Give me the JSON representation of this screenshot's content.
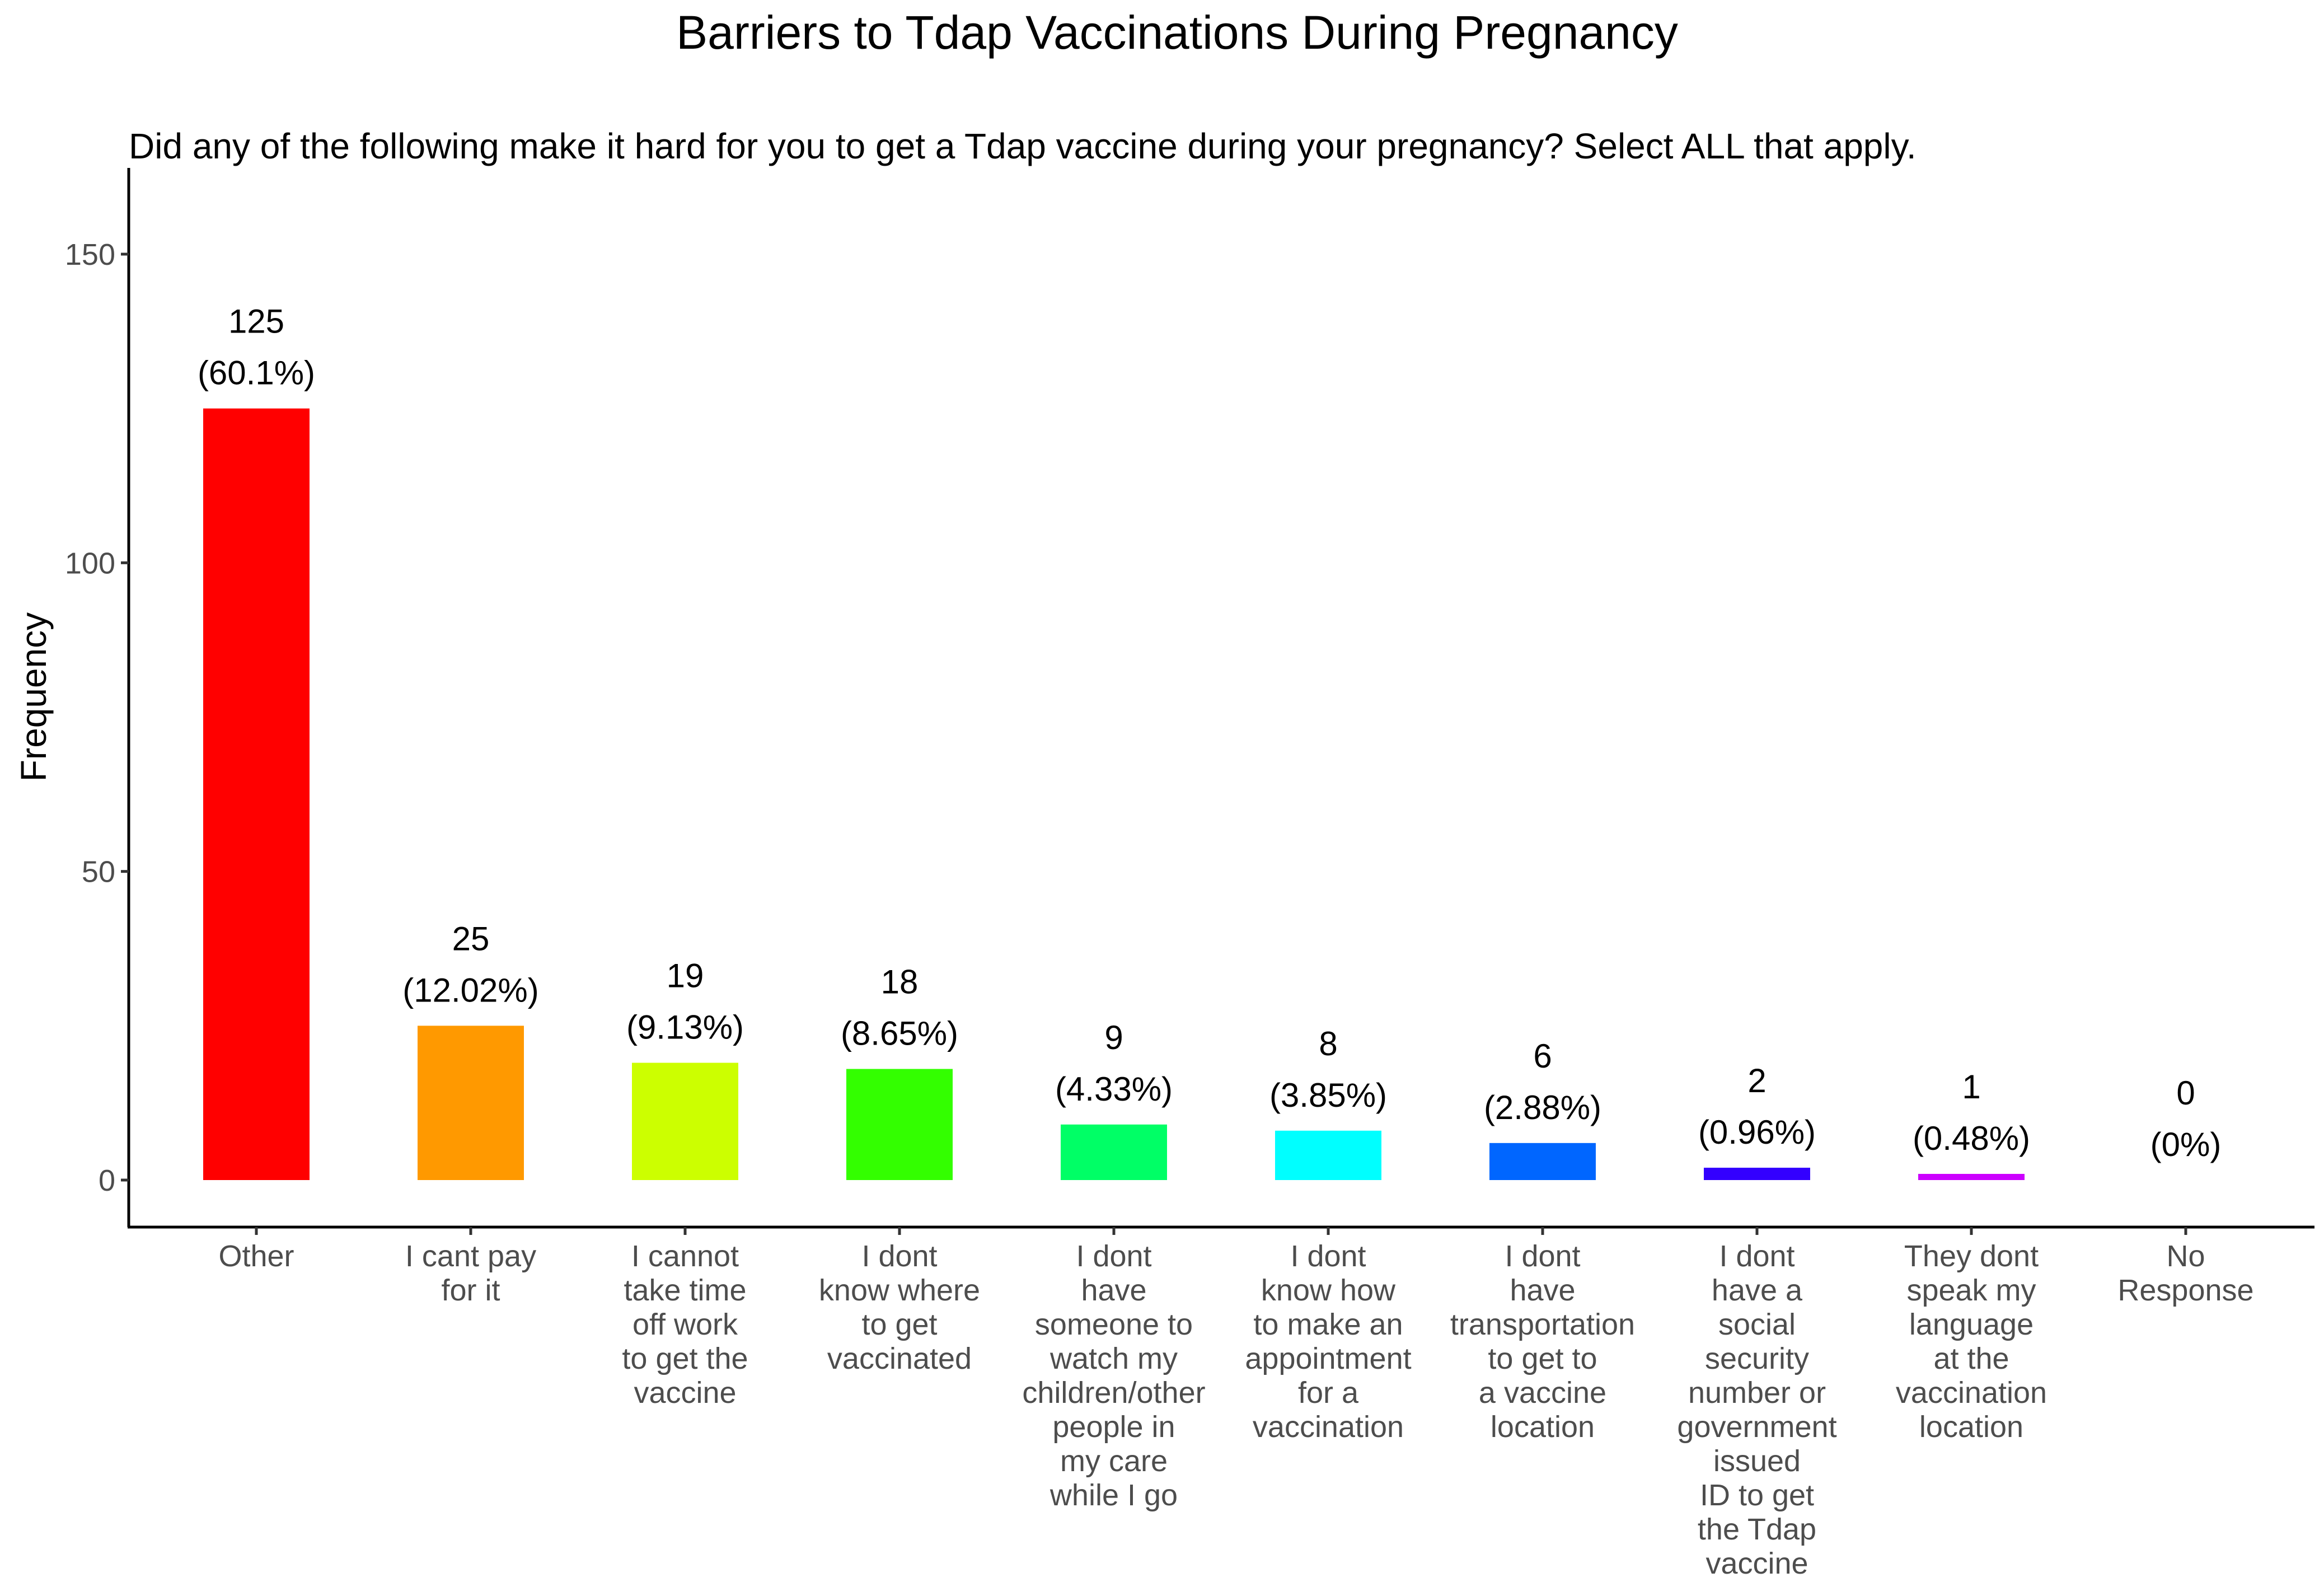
{
  "chart_data": {
    "type": "bar",
    "title": "Barriers to Tdap Vaccinations During Pregnancy",
    "subtitle": "Did any of the following make it hard for you to get a Tdap vaccine during your pregnancy? Select ALL that apply.",
    "xlabel": "",
    "ylabel": "Frequency",
    "ylim": [
      0,
      163
    ],
    "yticks": [
      0,
      50,
      100,
      150
    ],
    "grid": false,
    "legend": "none",
    "categories": [
      "Other",
      "I cant pay for it",
      "I cannot take time off work to get the vaccine",
      "I dont know where to get vaccinated",
      "I dont have someone to watch my children/other people in my care while I go",
      "I dont know how to make an appointment for a vaccination",
      "I dont have transportation to get to a vaccine location",
      "I dont have a social security number or government issued ID to get the Tdap vaccine",
      "They dont speak my language at the vaccination location",
      "No Response"
    ],
    "category_lines": [
      [
        "Other"
      ],
      [
        "I cant pay",
        "for it"
      ],
      [
        "I cannot",
        "take time",
        "off work",
        "to get the",
        "vaccine"
      ],
      [
        "I dont",
        "know where",
        "to get",
        "vaccinated"
      ],
      [
        "I dont",
        "have",
        "someone to",
        "watch my",
        "children/other",
        "people in",
        "my care",
        "while I go"
      ],
      [
        "I dont",
        "know how",
        "to make an",
        "appointment",
        "for a",
        "vaccination"
      ],
      [
        "I dont",
        "have",
        "transportation",
        "to get to",
        "a vaccine",
        "location"
      ],
      [
        "I dont",
        "have a",
        "social",
        "security",
        "number or",
        "government",
        "issued",
        "ID to get",
        "the Tdap",
        "vaccine"
      ],
      [
        "They dont",
        "speak my",
        "language",
        "at the",
        "vaccination",
        "location"
      ],
      [
        "No",
        "Response"
      ]
    ],
    "values": [
      125,
      25,
      19,
      18,
      9,
      8,
      6,
      2,
      1,
      0
    ],
    "percent_labels": [
      "(60.1%)",
      "(12.02%)",
      "(9.13%)",
      "(8.65%)",
      "(4.33%)",
      "(3.85%)",
      "(2.88%)",
      "(0.96%)",
      "(0.48%)",
      "(0%)"
    ],
    "colors": [
      "#FF0000",
      "#FF9900",
      "#CCFF00",
      "#33FF00",
      "#00FF66",
      "#00FFFF",
      "#0066FF",
      "#3300FF",
      "#CC00FF",
      "#FF0099"
    ]
  }
}
